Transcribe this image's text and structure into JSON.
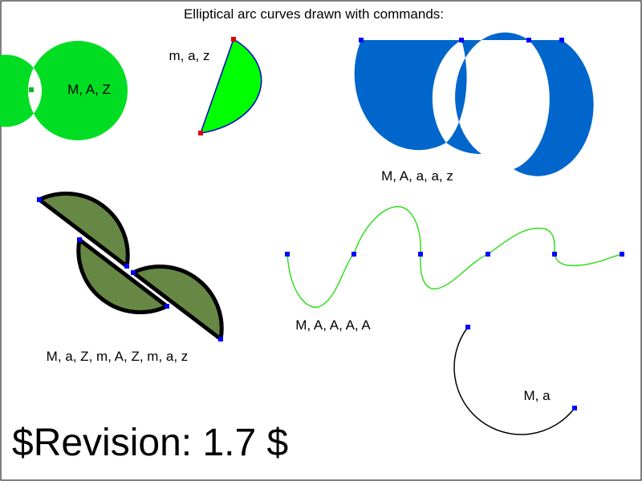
{
  "title": "Elliptical arc curves drawn with commands:",
  "labels": {
    "ring": "M, A, Z",
    "pie": "m, a, z",
    "blue": "M, A, a, a, z",
    "olive": "M, a, Z, m, A, Z, m, a, z",
    "wave": "M, A, A, A, A",
    "arc": "M, a"
  },
  "revision": "$Revision: 1.7 $",
  "colors": {
    "ring": "#00dd22",
    "pie_fill": "#00ff00",
    "pie_stroke": "#0000cc",
    "blue_fill": "#0066cc",
    "olive_fill": "#668844",
    "wave_stroke": "#33dd22",
    "marker_red": "#dd0000",
    "marker_blue": "#0000ff"
  }
}
